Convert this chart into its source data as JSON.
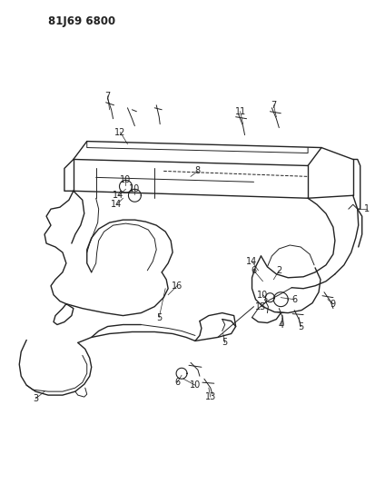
{
  "title": "81J69 6800",
  "title_fontsize": 8.5,
  "title_fontweight": "bold",
  "background_color": "#ffffff",
  "line_color": "#222222",
  "label_fontsize": 7,
  "fig_width": 4.14,
  "fig_height": 5.33,
  "dpi": 100
}
